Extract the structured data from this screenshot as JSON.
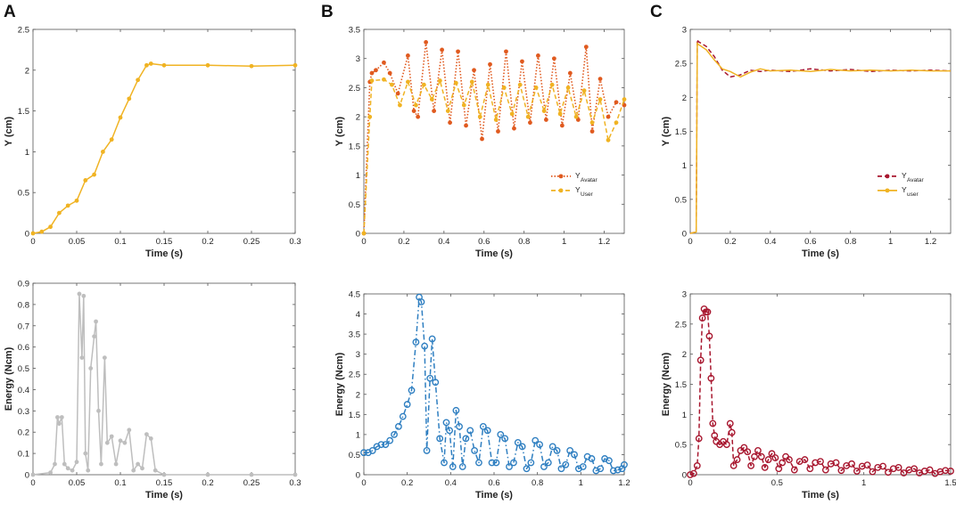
{
  "figure": {
    "panel_labels": [
      "A",
      "B",
      "C"
    ]
  },
  "chart_data": [
    {
      "id": "A-top",
      "type": "line",
      "panel": "A",
      "title": "",
      "xlabel": "Time (s)",
      "ylabel": "Y (cm)",
      "xlim": [
        0,
        0.3
      ],
      "ylim": [
        0,
        2.5
      ],
      "xticks": [
        0,
        0.05,
        0.1,
        0.15,
        0.2,
        0.25,
        0.3
      ],
      "xtick_labels": [
        "0",
        "0.05",
        "0.1",
        "0.15",
        "0.2",
        "0.25",
        "0.3"
      ],
      "yticks": [
        0,
        0.5,
        1,
        1.5,
        2,
        2.5
      ],
      "ytick_labels": [
        "0",
        "0.5",
        "1",
        "1.5",
        "2",
        "2.5"
      ],
      "series": [
        {
          "name": "Y",
          "color": "#F0B323",
          "style": "solid",
          "marker": "dot",
          "markers_on_points": true,
          "x": [
            0,
            0.01,
            0.02,
            0.03,
            0.04,
            0.05,
            0.06,
            0.07,
            0.08,
            0.09,
            0.1,
            0.11,
            0.12,
            0.13,
            0.135,
            0.15,
            0.2,
            0.25,
            0.3
          ],
          "y": [
            0,
            0.02,
            0.08,
            0.25,
            0.34,
            0.4,
            0.65,
            0.72,
            1.0,
            1.15,
            1.42,
            1.65,
            1.88,
            2.06,
            2.08,
            2.06,
            2.06,
            2.05,
            2.06
          ]
        }
      ]
    },
    {
      "id": "A-bottom",
      "type": "line",
      "panel": "A",
      "title": "",
      "xlabel": "Time (s)",
      "ylabel": "Energy (Ncm)",
      "xlim": [
        0,
        0.3
      ],
      "ylim": [
        0,
        0.9
      ],
      "xticks": [
        0,
        0.05,
        0.1,
        0.15,
        0.2,
        0.25,
        0.3
      ],
      "xtick_labels": [
        "0",
        "0.05",
        "0.1",
        "0.15",
        "0.2",
        "0.25",
        "0.3"
      ],
      "yticks": [
        0,
        0.1,
        0.2,
        0.3,
        0.4,
        0.5,
        0.6,
        0.7,
        0.8,
        0.9
      ],
      "ytick_labels": [
        "0",
        "0.1",
        "0.2",
        "0.3",
        "0.4",
        "0.5",
        "0.6",
        "0.7",
        "0.8",
        "0.9"
      ],
      "series": [
        {
          "name": "Energy",
          "color": "#BEBEBE",
          "style": "solid",
          "marker": "dot",
          "markers_on_points": true,
          "x": [
            0,
            0.02,
            0.025,
            0.028,
            0.03,
            0.033,
            0.036,
            0.04,
            0.045,
            0.05,
            0.053,
            0.056,
            0.058,
            0.06,
            0.063,
            0.066,
            0.07,
            0.072,
            0.075,
            0.078,
            0.082,
            0.085,
            0.09,
            0.095,
            0.1,
            0.105,
            0.11,
            0.115,
            0.12,
            0.125,
            0.13,
            0.135,
            0.14,
            0.15,
            0.2,
            0.25,
            0.3
          ],
          "y": [
            0,
            0.01,
            0.05,
            0.27,
            0.24,
            0.27,
            0.05,
            0.03,
            0.02,
            0.06,
            0.85,
            0.55,
            0.84,
            0.1,
            0.02,
            0.5,
            0.65,
            0.72,
            0.3,
            0.05,
            0.55,
            0.15,
            0.18,
            0.05,
            0.16,
            0.15,
            0.21,
            0.02,
            0.05,
            0.03,
            0.19,
            0.17,
            0.02,
            0,
            0,
            0,
            0
          ]
        }
      ]
    },
    {
      "id": "B-top",
      "type": "line",
      "panel": "B",
      "title": "",
      "xlabel": "Time (s)",
      "ylabel": "Y (cm)",
      "xlim": [
        0,
        1.3
      ],
      "ylim": [
        0,
        3.5
      ],
      "xticks": [
        0,
        0.2,
        0.4,
        0.6,
        0.8,
        1,
        1.2
      ],
      "xtick_labels": [
        "0",
        "0.2",
        "0.4",
        "0.6",
        "0.8",
        "1",
        "1.2"
      ],
      "yticks": [
        0,
        0.5,
        1,
        1.5,
        2,
        2.5,
        3,
        3.5
      ],
      "ytick_labels": [
        "0",
        "0.5",
        "1",
        "1.5",
        "2",
        "2.5",
        "3",
        "3.5"
      ],
      "legend": {
        "location": "right-middle",
        "entries": [
          {
            "label": "Y",
            "sub": "Avatar"
          },
          {
            "label": "Y",
            "sub": "User"
          }
        ]
      },
      "series": [
        {
          "name": "Y_Avatar",
          "color": "#E05A1F",
          "style": "dotted",
          "marker": "dot",
          "markers_on_points": true,
          "x": [
            0,
            0.03,
            0.04,
            0.06,
            0.1,
            0.13,
            0.17,
            0.22,
            0.25,
            0.27,
            0.31,
            0.35,
            0.39,
            0.43,
            0.47,
            0.51,
            0.55,
            0.59,
            0.63,
            0.67,
            0.71,
            0.75,
            0.79,
            0.83,
            0.87,
            0.91,
            0.95,
            0.99,
            1.03,
            1.07,
            1.11,
            1.14,
            1.18,
            1.22,
            1.26,
            1.3
          ],
          "y": [
            0,
            2.6,
            2.75,
            2.8,
            2.93,
            2.75,
            2.4,
            3.05,
            2.1,
            2.0,
            3.28,
            2.1,
            3.15,
            1.9,
            3.12,
            1.85,
            2.8,
            1.62,
            2.9,
            1.75,
            3.12,
            1.8,
            2.95,
            1.9,
            3.05,
            1.95,
            3.0,
            1.85,
            2.75,
            1.95,
            3.2,
            1.75,
            2.65,
            2.0,
            2.25,
            2.2
          ]
        },
        {
          "name": "Y_User",
          "color": "#F0B323",
          "style": "dashed",
          "marker": "dot",
          "markers_on_points": true,
          "x": [
            0,
            0.03,
            0.04,
            0.1,
            0.14,
            0.18,
            0.22,
            0.26,
            0.3,
            0.34,
            0.38,
            0.42,
            0.46,
            0.5,
            0.54,
            0.58,
            0.62,
            0.66,
            0.7,
            0.74,
            0.78,
            0.82,
            0.86,
            0.9,
            0.94,
            0.98,
            1.02,
            1.06,
            1.1,
            1.14,
            1.18,
            1.22,
            1.26,
            1.3
          ],
          "y": [
            0,
            2.0,
            2.62,
            2.64,
            2.55,
            2.2,
            2.6,
            2.2,
            2.55,
            2.3,
            2.62,
            2.1,
            2.58,
            2.2,
            2.6,
            2.0,
            2.55,
            1.95,
            2.5,
            2.05,
            2.55,
            2.0,
            2.5,
            2.1,
            2.55,
            2.05,
            2.5,
            2.0,
            2.45,
            1.9,
            2.3,
            1.6,
            1.9,
            2.3
          ]
        }
      ]
    },
    {
      "id": "B-bottom",
      "type": "line",
      "panel": "B",
      "title": "",
      "xlabel": "Time (s)",
      "ylabel": "Energy (Ncm)",
      "xlim": [
        0,
        1.2
      ],
      "ylim": [
        0,
        4.5
      ],
      "xticks": [
        0,
        0.2,
        0.4,
        0.6,
        0.8,
        1,
        1.2
      ],
      "xtick_labels": [
        "0",
        "0.2",
        "0.4",
        "0.6",
        "0.8",
        "1",
        "1.2"
      ],
      "yticks": [
        0,
        0.5,
        1,
        1.5,
        2,
        2.5,
        3,
        3.5,
        4,
        4.5
      ],
      "ytick_labels": [
        "0",
        "0.5",
        "1",
        "1.5",
        "2",
        "2.5",
        "3",
        "3.5",
        "4",
        "4.5"
      ],
      "series": [
        {
          "name": "Energy",
          "color": "#2F7FC1",
          "style": "dashdot",
          "marker": "circle",
          "markers_on_points": true,
          "x": [
            0,
            0.02,
            0.04,
            0.06,
            0.08,
            0.1,
            0.12,
            0.14,
            0.16,
            0.18,
            0.2,
            0.22,
            0.24,
            0.255,
            0.265,
            0.28,
            0.29,
            0.305,
            0.315,
            0.33,
            0.35,
            0.37,
            0.38,
            0.395,
            0.41,
            0.425,
            0.44,
            0.455,
            0.47,
            0.49,
            0.51,
            0.53,
            0.55,
            0.57,
            0.59,
            0.61,
            0.63,
            0.65,
            0.67,
            0.69,
            0.71,
            0.73,
            0.75,
            0.77,
            0.79,
            0.81,
            0.83,
            0.85,
            0.87,
            0.89,
            0.91,
            0.93,
            0.95,
            0.97,
            0.99,
            1.01,
            1.03,
            1.05,
            1.07,
            1.09,
            1.11,
            1.13,
            1.15,
            1.17,
            1.19,
            1.2
          ],
          "y": [
            0.55,
            0.55,
            0.6,
            0.7,
            0.75,
            0.75,
            0.85,
            1.0,
            1.2,
            1.45,
            1.75,
            2.1,
            3.3,
            4.42,
            4.3,
            3.2,
            0.6,
            2.4,
            3.38,
            2.3,
            0.9,
            0.3,
            1.3,
            1.1,
            0.2,
            1.6,
            1.2,
            0.2,
            0.9,
            1.1,
            0.6,
            0.3,
            1.2,
            1.1,
            0.3,
            0.3,
            1.0,
            0.9,
            0.2,
            0.3,
            0.8,
            0.7,
            0.15,
            0.3,
            0.85,
            0.75,
            0.2,
            0.3,
            0.7,
            0.6,
            0.15,
            0.25,
            0.6,
            0.5,
            0.15,
            0.2,
            0.45,
            0.4,
            0.1,
            0.15,
            0.4,
            0.35,
            0.1,
            0.12,
            0.15,
            0.25
          ]
        }
      ]
    },
    {
      "id": "C-top",
      "type": "line",
      "panel": "C",
      "title": "",
      "xlabel": "Time (s)",
      "ylabel": "Y (cm)",
      "xlim": [
        0,
        1.3
      ],
      "ylim": [
        0,
        3
      ],
      "xticks": [
        0,
        0.2,
        0.4,
        0.6,
        0.8,
        1,
        1.2
      ],
      "xtick_labels": [
        "0",
        "0.2",
        "0.4",
        "0.6",
        "0.8",
        "1",
        "1.2"
      ],
      "yticks": [
        0,
        0.5,
        1,
        1.5,
        2,
        2.5,
        3
      ],
      "ytick_labels": [
        "0",
        "0.5",
        "1",
        "1.5",
        "2",
        "2.5",
        "3"
      ],
      "legend": {
        "location": "right-middle",
        "entries": [
          {
            "label": "Y",
            "sub": "Avatar"
          },
          {
            "label": "Y",
            "sub": "user"
          }
        ]
      },
      "series": [
        {
          "name": "Y_Avatar",
          "color": "#A8172F",
          "style": "dashed",
          "marker": "dot",
          "markers_on_points": false,
          "x": [
            0,
            0.03,
            0.035,
            0.04,
            0.08,
            0.12,
            0.16,
            0.2,
            0.25,
            0.3,
            0.35,
            0.4,
            0.5,
            0.6,
            0.7,
            0.8,
            0.9,
            1.0,
            1.1,
            1.2,
            1.3
          ],
          "y": [
            0,
            0.02,
            2.85,
            2.82,
            2.75,
            2.6,
            2.4,
            2.3,
            2.33,
            2.4,
            2.38,
            2.4,
            2.38,
            2.42,
            2.39,
            2.41,
            2.38,
            2.4,
            2.39,
            2.4,
            2.39
          ]
        },
        {
          "name": "Y_user",
          "color": "#F0B323",
          "style": "solid",
          "marker": "dot",
          "markers_on_points": false,
          "x": [
            0,
            0.03,
            0.035,
            0.04,
            0.08,
            0.12,
            0.16,
            0.2,
            0.25,
            0.3,
            0.35,
            0.4,
            0.5,
            0.6,
            0.7,
            0.8,
            0.9,
            1.0,
            1.1,
            1.2,
            1.3
          ],
          "y": [
            0,
            0.02,
            2.8,
            2.78,
            2.7,
            2.55,
            2.42,
            2.38,
            2.3,
            2.37,
            2.42,
            2.39,
            2.4,
            2.38,
            2.41,
            2.39,
            2.4,
            2.39,
            2.4,
            2.39,
            2.39
          ]
        }
      ]
    },
    {
      "id": "C-bottom",
      "type": "line",
      "panel": "C",
      "title": "",
      "xlabel": "Time (s)",
      "ylabel": "Energy (Ncm)",
      "xlim": [
        0,
        1.5
      ],
      "ylim": [
        0,
        3
      ],
      "xticks": [
        0,
        0.5,
        1,
        1.5
      ],
      "xtick_labels": [
        "0",
        "0.5",
        "1",
        "1.5"
      ],
      "yticks": [
        0,
        0.5,
        1,
        1.5,
        2,
        2.5,
        3
      ],
      "ytick_labels": [
        "0",
        "0.5",
        "1",
        "1.5",
        "2",
        "2.5",
        "3"
      ],
      "series": [
        {
          "name": "Energy",
          "color": "#A8172F",
          "style": "dashed",
          "marker": "circle",
          "markers_on_points": true,
          "x": [
            0,
            0.02,
            0.04,
            0.05,
            0.06,
            0.07,
            0.08,
            0.09,
            0.1,
            0.11,
            0.12,
            0.13,
            0.14,
            0.15,
            0.17,
            0.19,
            0.21,
            0.23,
            0.24,
            0.25,
            0.27,
            0.29,
            0.31,
            0.33,
            0.35,
            0.37,
            0.39,
            0.41,
            0.43,
            0.45,
            0.47,
            0.49,
            0.51,
            0.53,
            0.55,
            0.57,
            0.6,
            0.63,
            0.66,
            0.69,
            0.72,
            0.75,
            0.78,
            0.81,
            0.84,
            0.87,
            0.9,
            0.93,
            0.96,
            0.99,
            1.02,
            1.05,
            1.08,
            1.11,
            1.14,
            1.17,
            1.2,
            1.23,
            1.26,
            1.29,
            1.32,
            1.35,
            1.38,
            1.41,
            1.44,
            1.47,
            1.5
          ],
          "y": [
            0,
            0.02,
            0.15,
            0.6,
            1.9,
            2.6,
            2.75,
            2.7,
            2.7,
            2.3,
            1.6,
            0.85,
            0.65,
            0.55,
            0.5,
            0.55,
            0.5,
            0.85,
            0.7,
            0.15,
            0.25,
            0.4,
            0.45,
            0.38,
            0.15,
            0.3,
            0.4,
            0.3,
            0.12,
            0.25,
            0.35,
            0.28,
            0.1,
            0.2,
            0.3,
            0.25,
            0.08,
            0.22,
            0.25,
            0.1,
            0.2,
            0.22,
            0.08,
            0.18,
            0.2,
            0.07,
            0.15,
            0.18,
            0.06,
            0.14,
            0.16,
            0.05,
            0.12,
            0.14,
            0.04,
            0.1,
            0.12,
            0.03,
            0.08,
            0.1,
            0.03,
            0.06,
            0.08,
            0.02,
            0.05,
            0.07,
            0.06
          ]
        }
      ]
    }
  ]
}
